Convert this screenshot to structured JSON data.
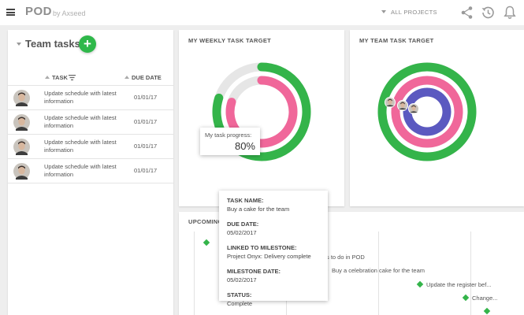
{
  "app": {
    "name": "POD",
    "byline": "by Axseed"
  },
  "header": {
    "project_selector": "ALL PROJECTS",
    "icons": [
      "share-icon",
      "history-icon",
      "bell-icon"
    ]
  },
  "team_tasks": {
    "title": "Team tasks",
    "add_label": "+",
    "columns": {
      "task": "TASK",
      "due": "DUE DATE"
    },
    "rows": [
      {
        "task": "Update schedule with latest information",
        "due": "01/01/17"
      },
      {
        "task": "Update schedule with latest information",
        "due": "01/01/17"
      },
      {
        "task": "Update schedule with latest information",
        "due": "01/01/17"
      },
      {
        "task": "Update schedule with latest information",
        "due": "01/01/17"
      }
    ]
  },
  "weekly_target": {
    "title": "MY WEEKLY TASK TARGET",
    "rings": [
      {
        "name": "outer",
        "progress": 0.8,
        "color": "#34b44a"
      },
      {
        "name": "inner",
        "progress": 0.8,
        "color": "#f0679a"
      }
    ],
    "progress_tooltip": {
      "label": "My task progress:",
      "value": "80%"
    }
  },
  "team_target": {
    "title": "MY TEAM TASK TARGET",
    "rings": [
      {
        "name": "outer",
        "progress": 1.0,
        "color": "#34b44a"
      },
      {
        "name": "middle",
        "progress": 1.0,
        "color": "#f0679a"
      },
      {
        "name": "inner",
        "progress": 1.0,
        "color": "#5b59c0"
      }
    ]
  },
  "upcoming": {
    "title": "UPCOMING",
    "milestones": [
      {
        "label": ""
      },
      {
        "label": "ings to do in POD"
      },
      {
        "label": "Buy a celebration cake for the team"
      },
      {
        "label": "Update the register bef..."
      },
      {
        "label": "Change..."
      },
      {
        "label": ""
      }
    ]
  },
  "task_tooltip": {
    "task_name_label": "TASK NAME:",
    "task_name": "Buy a cake for the team",
    "due_date_label": "DUE DATE:",
    "due_date": "05/02/2017",
    "milestone_label": "LINKED TO MILESTONE:",
    "milestone": "Project Onyx: Delivery complete",
    "milestone_date_label": "MILESTONE DATE:",
    "milestone_date": "05/02/2017",
    "status_label": "STATUS:",
    "status": "Complete"
  },
  "colors": {
    "accent_green": "#34b44a",
    "pink": "#f0679a",
    "indigo": "#5b59c0",
    "track": "#e6e6e6"
  }
}
